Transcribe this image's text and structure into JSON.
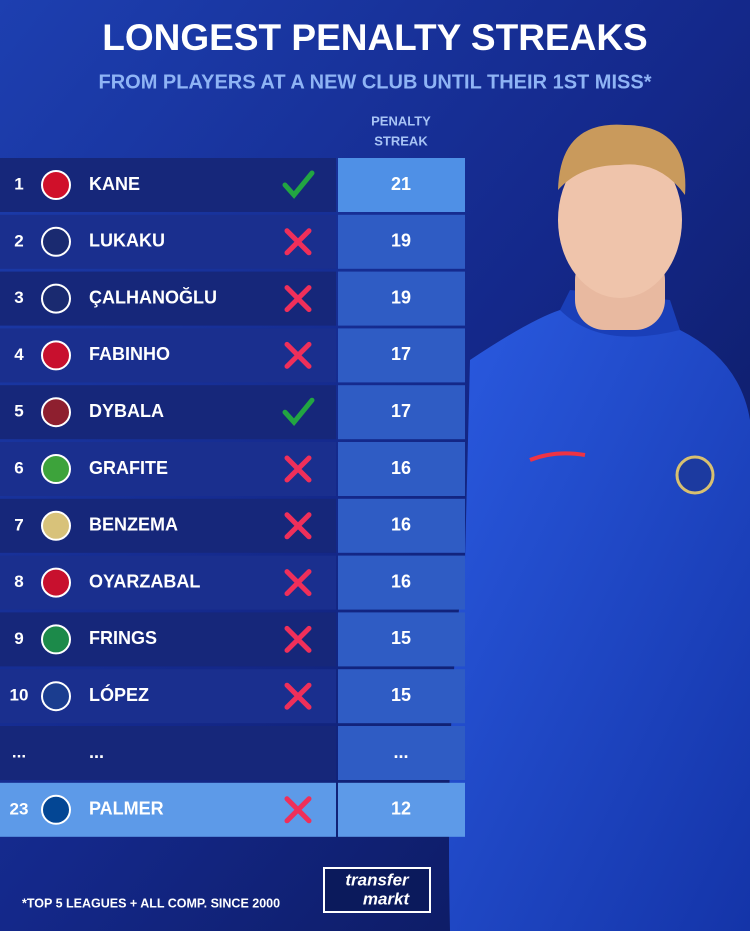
{
  "header": {
    "title": "LONGEST PENALTY STREAKS",
    "subtitle": "FROM PLAYERS AT A NEW CLUB UNTIL THEIR 1ST MISS*"
  },
  "table": {
    "column_header": [
      "PENALTY",
      "STREAK"
    ],
    "rows": [
      [
        "1",
        "KANE",
        "21"
      ],
      [
        "2",
        "LUKAKU",
        "19"
      ],
      [
        "3",
        "ÇALHANOĞLU",
        "19"
      ],
      [
        "4",
        "FABINHO",
        "17"
      ],
      [
        "5",
        "DYBALA",
        "17"
      ],
      [
        "6",
        "GRAFITE",
        "16"
      ],
      [
        "7",
        "BENZEMA",
        "16"
      ],
      [
        "8",
        "OYARZABAL",
        "16"
      ],
      [
        "9",
        "FRINGS",
        "15"
      ],
      [
        "10",
        "LÓPEZ",
        "15"
      ],
      [
        "...",
        "...",
        "..."
      ],
      [
        "23",
        "PALMER",
        "12"
      ]
    ]
  },
  "footnote": "*TOP 5 LEAGUES + ALL COMP. SINCE 2000",
  "logo": [
    "transfer",
    "markt"
  ]
}
